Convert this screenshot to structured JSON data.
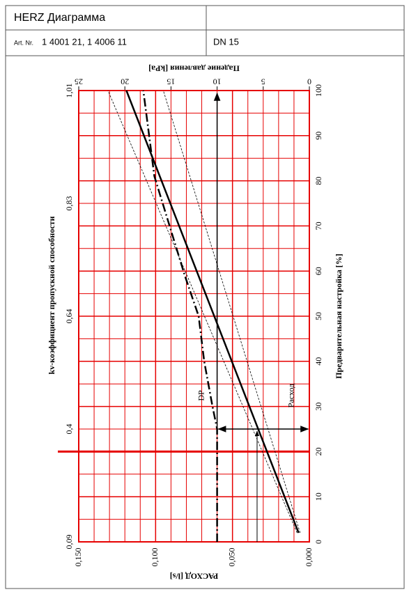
{
  "header": {
    "title": "HERZ Диаграмма",
    "art_label": "Art. Nr.",
    "art_number": "1 4001 21, 1 4006 11",
    "dn": "DN 15"
  },
  "chart_data": {
    "type": "line",
    "x_label": "РАСХОД [l/s]",
    "xlim": [
      0.15,
      0
    ],
    "xticks": [
      {
        "value": 0.15,
        "label": "0,150"
      },
      {
        "value": 0.1,
        "label": "0,100"
      },
      {
        "value": 0.05,
        "label": "0,050"
      },
      {
        "value": 0,
        "label": "0,000"
      }
    ],
    "pressure_label": "Падение давления [kPa]",
    "pressure_lim": [
      25,
      0
    ],
    "pressure_ticks": [
      25,
      20,
      15,
      10,
      5,
      0
    ],
    "y_label": "Предварительная настройка [%]",
    "ylim": [
      0,
      100
    ],
    "yticks": [
      0,
      10,
      20,
      30,
      40,
      50,
      60,
      70,
      80,
      90,
      100
    ],
    "kv_label": "kv-коэффициент  пропускной способности",
    "kv_ticks": [
      {
        "value": 0.09,
        "label": "0,09"
      },
      {
        "value": 0.4,
        "label": "0,4"
      },
      {
        "value": 0.64,
        "label": "0,64"
      },
      {
        "value": 0.83,
        "label": "0,83"
      },
      {
        "value": 1.01,
        "label": "1,01"
      }
    ],
    "highlight": 20,
    "grid_color": "#e60000",
    "series": [
      {
        "name": "Расход",
        "axis": "x",
        "style": "solid",
        "setting": [
          2,
          100
        ],
        "values": [
          0.007,
          0.119
        ]
      },
      {
        "axis": "x",
        "style": "thin",
        "setting": [
          2,
          100
        ],
        "values": [
          0.008,
          0.131
        ]
      },
      {
        "axis": "x",
        "style": "thin",
        "setting": [
          2,
          100
        ],
        "values": [
          0.006,
          0.095
        ]
      },
      {
        "name": "DP",
        "axis": "pressure",
        "style": "dashdot",
        "setting": [
          0,
          25,
          30,
          40,
          50,
          59,
          81,
          100
        ],
        "values": [
          10,
          10,
          10.5,
          11.4,
          12,
          13.5,
          16.8,
          18
        ]
      }
    ],
    "example": {
      "setting": 25,
      "flow": 0.034,
      "pressure": 10
    }
  }
}
